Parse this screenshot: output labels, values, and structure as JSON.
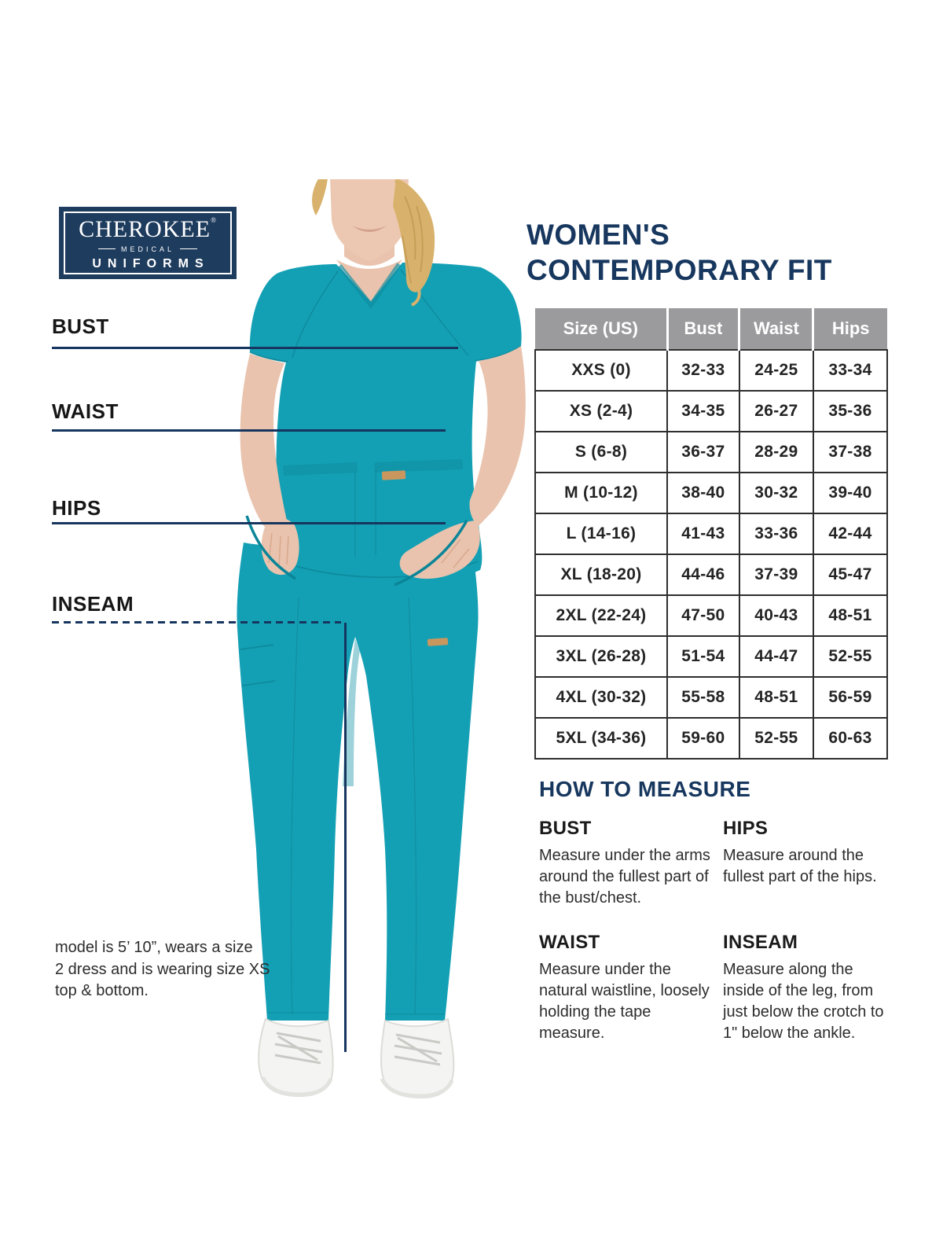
{
  "logo": {
    "brand": "CHEROKEE",
    "reg": "®",
    "sub": "MEDICAL",
    "name": "UNIFORMS"
  },
  "title": {
    "line1": "WOMEN'S",
    "line2": "CONTEMPORARY FIT"
  },
  "figure_labels": {
    "bust": "BUST",
    "waist": "WAIST",
    "hips": "HIPS",
    "inseam": "INSEAM"
  },
  "model_note": {
    "line1": "model is 5’ 10”, wears a size",
    "line2": "2 dress and is wearing size XS",
    "line3": "top & bottom."
  },
  "chart_data": {
    "type": "table",
    "title": "WOMEN'S CONTEMPORARY FIT",
    "columns": [
      "Size (US)",
      "Bust",
      "Waist",
      "Hips"
    ],
    "rows": [
      [
        "XXS (0)",
        "32-33",
        "24-25",
        "33-34"
      ],
      [
        "XS (2-4)",
        "34-35",
        "26-27",
        "35-36"
      ],
      [
        "S (6-8)",
        "36-37",
        "28-29",
        "37-38"
      ],
      [
        "M (10-12)",
        "38-40",
        "30-32",
        "39-40"
      ],
      [
        "L (14-16)",
        "41-43",
        "33-36",
        "42-44"
      ],
      [
        "XL (18-20)",
        "44-46",
        "37-39",
        "45-47"
      ],
      [
        "2XL (22-24)",
        "47-50",
        "40-43",
        "48-51"
      ],
      [
        "3XL (26-28)",
        "51-54",
        "44-47",
        "52-55"
      ],
      [
        "4XL (30-32)",
        "55-58",
        "48-51",
        "56-59"
      ],
      [
        "5XL (34-36)",
        "59-60",
        "52-55",
        "60-63"
      ]
    ]
  },
  "how_to_measure": {
    "title": "HOW TO MEASURE",
    "items": [
      {
        "title": "BUST",
        "text": "Measure under the arms around the fullest part of the bust/chest."
      },
      {
        "title": "HIPS",
        "text": "Measure around the fullest part of the hips."
      },
      {
        "title": "WAIST",
        "text": "Measure under the natural waistline, loosely holding the tape measure."
      },
      {
        "title": "INSEAM",
        "text": "Measure along the inside of the leg, from just below the crotch to 1\" below the ankle."
      }
    ]
  },
  "colors": {
    "navy": "#17375e",
    "teal": "#14a0b4",
    "table_header_bg": "#9b9b9d",
    "line_navy": "#16355f"
  }
}
